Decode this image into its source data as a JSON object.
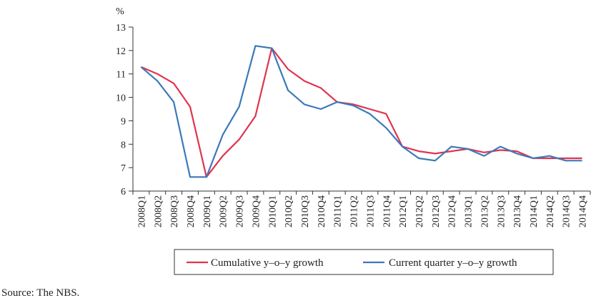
{
  "chart_data": {
    "type": "line",
    "unit_label": "%",
    "categories": [
      "2008Q1",
      "2008Q2",
      "2008Q3",
      "2008Q4",
      "2009Q1",
      "2009Q2",
      "2009Q3",
      "2009Q4",
      "2010Q1",
      "2010Q2",
      "2010Q3",
      "2010Q4",
      "2011Q1",
      "2011Q2",
      "2011Q3",
      "2011Q4",
      "2012Q1",
      "2012Q2",
      "2012Q3",
      "2012Q4",
      "2013Q1",
      "2013Q2",
      "2013Q3",
      "2013Q4",
      "2014Q1",
      "2014Q2",
      "2014Q3",
      "2014Q4"
    ],
    "series": [
      {
        "name": "Cumulative y–o–y growth",
        "color": "#e0344f",
        "values": [
          11.3,
          11.0,
          10.6,
          9.6,
          6.6,
          7.5,
          8.2,
          9.2,
          12.1,
          11.2,
          10.7,
          10.4,
          9.8,
          9.7,
          9.5,
          9.3,
          7.9,
          7.7,
          7.6,
          7.7,
          7.8,
          7.65,
          7.75,
          7.7,
          7.4,
          7.4,
          7.4,
          7.4
        ]
      },
      {
        "name": "Current quarter y–o–y growth",
        "color": "#3c79b8",
        "values": [
          11.3,
          10.7,
          9.8,
          6.6,
          6.6,
          8.4,
          9.6,
          12.2,
          12.1,
          10.3,
          9.7,
          9.5,
          9.8,
          9.65,
          9.3,
          8.7,
          7.9,
          7.4,
          7.3,
          7.9,
          7.8,
          7.5,
          7.9,
          7.6,
          7.4,
          7.5,
          7.3,
          7.3
        ]
      }
    ],
    "ylim": [
      6,
      13
    ],
    "yticks": [
      6,
      7,
      8,
      9,
      10,
      11,
      12,
      13
    ],
    "legend_position": "bottom",
    "grid": false
  },
  "source_note": "Source: The NBS."
}
